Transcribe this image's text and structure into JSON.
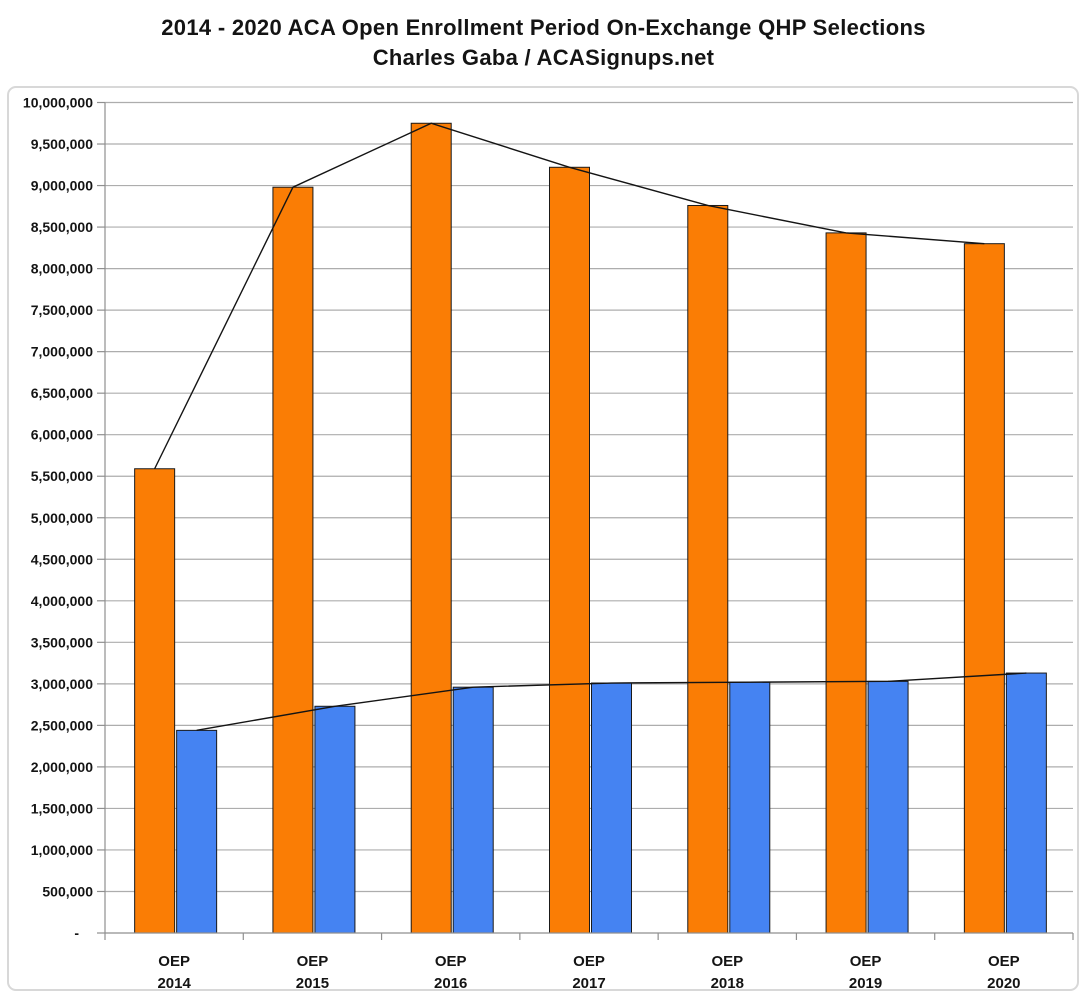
{
  "header": {
    "title": "2014 - 2020 ACA Open Enrollment Period On-Exchange QHP Selections",
    "subtitle": "Charles Gaba / ACASignups.net"
  },
  "chart_data": {
    "type": "bar",
    "categories": [
      "OEP 2014",
      "OEP 2015",
      "OEP 2016",
      "OEP 2017",
      "OEP 2018",
      "OEP 2019",
      "OEP 2020"
    ],
    "category_label_lines": {
      "top": "OEP",
      "years": [
        "2014",
        "2015",
        "2016",
        "2017",
        "2018",
        "2019",
        "2020"
      ]
    },
    "series": [
      {
        "name": "orange",
        "color": "#FA7D05",
        "values": [
          5590000,
          8980000,
          9750000,
          9220000,
          8760000,
          8430000,
          8300000
        ]
      },
      {
        "name": "blue",
        "color": "#4583F2",
        "values": [
          2440000,
          2730000,
          2960000,
          3010000,
          3020000,
          3030000,
          3130000
        ]
      }
    ],
    "line_overlays": [
      {
        "name": "orange-trend-line",
        "follows": "orange",
        "color": "#141414"
      },
      {
        "name": "blue-trend-line",
        "follows": "blue",
        "color": "#141414"
      }
    ],
    "title": "2014 - 2020 ACA Open Enrollment Period On-Exchange QHP Selections",
    "subtitle": "Charles Gaba / ACASignups.net",
    "xlabel": "",
    "ylabel": "",
    "ylim": [
      0,
      10000000
    ],
    "ytick_step": 500000,
    "ytick_labels": [
      "10,000,000",
      "9,500,000",
      "9,000,000",
      "8,500,000",
      "8,000,000",
      "7,500,000",
      "7,000,000",
      "6,500,000",
      "6,000,000",
      "5,500,000",
      "5,000,000",
      "4,500,000",
      "4,000,000",
      "3,500,000",
      "3,000,000",
      "2,500,000",
      "2,000,000",
      "1,500,000",
      "1,000,000",
      "500,000",
      "-"
    ],
    "grid": "horizontal",
    "legend": "none",
    "colors": {
      "bar_outline": "#1A1A1A",
      "gridline": "#ADADAD",
      "axis": "#8F8F8F",
      "frame_border": "#D8D8D8",
      "text": "#141414"
    }
  }
}
